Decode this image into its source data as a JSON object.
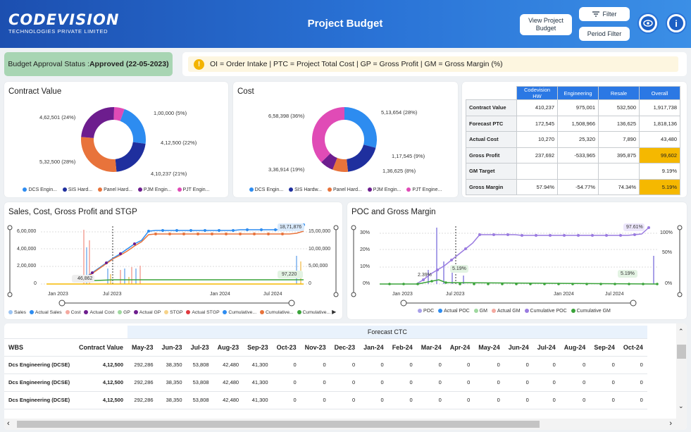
{
  "header": {
    "logo_main": "CODEVISION",
    "logo_sub": "TECHNOLOGIES PRIVATE LIMITED",
    "title": "Project Budget",
    "view_btn_l1": "View Project",
    "view_btn_l2": "Budget",
    "filter_btn": "Filter",
    "period_btn": "Period Filter",
    "eye_icon": "eye-icon",
    "info_icon": "info-icon",
    "filter_icon": "filter-icon"
  },
  "status": {
    "label": "Budget Approval Status : ",
    "value": "Approved (22-05-2023)"
  },
  "abbrev": {
    "text": "OI = Order Intake  |  PTC = Project Total Cost  |  GP = Gross Profit  |  GM = Gross Margin (%)"
  },
  "contract": {
    "title": "Contract Value",
    "labels": [
      "4,62,501 (24%)",
      "1,00,000 (5%)",
      "4,12,500 (22%)",
      "4,10,237 (21%)",
      "5,32,500 (28%)"
    ],
    "legend": [
      "DCS Engin...",
      "SIS Hard...",
      "Panel Hard...",
      "PJM Engin...",
      "PJT Engin..."
    ]
  },
  "cost": {
    "title": "Cost",
    "labels": [
      "6,58,398 (36%)",
      "5,13,654 (28%)",
      "1,17,545 (9%)",
      "1,36,625 (8%)",
      "3,36,914 (19%)"
    ],
    "legend": [
      "DCS Engin...",
      "SIS Hardw...",
      "Panel Hard...",
      "PJM Engin...",
      "PJT Engine..."
    ]
  },
  "colors": {
    "dcs": "#2d8cf0",
    "sis": "#1f2f9e",
    "panel": "#e8733b",
    "pjm": "#6d1d8e",
    "pjt": "#e04bb6",
    "orange": "#f5b800"
  },
  "summary": {
    "cols": [
      "Codevision HW",
      "Engineering",
      "Resale",
      "Overall"
    ],
    "rows": [
      {
        "name": "Contract Value",
        "v": [
          "410,237",
          "975,001",
          "532,500",
          "1,917,738"
        ]
      },
      {
        "name": "Forecast PTC",
        "v": [
          "172,545",
          "1,508,966",
          "136,625",
          "1,818,136"
        ]
      },
      {
        "name": "Actual Cost",
        "v": [
          "10,270",
          "25,320",
          "7,890",
          "43,480"
        ]
      },
      {
        "name": "Gross Profit",
        "v": [
          "237,692",
          "-533,965",
          "395,875",
          "99,602"
        ]
      },
      {
        "name": "GM Target",
        "v": [
          "",
          "",
          "",
          "9.19%"
        ]
      },
      {
        "name": "Gross Margin",
        "v": [
          "57.94%",
          "-54.77%",
          "74.34%",
          "5.19%"
        ]
      }
    ]
  },
  "sales": {
    "title": "Sales, Cost, Gross Profit and STGP",
    "yleft": [
      "6,00,000",
      "4,00,000",
      "2,00,000",
      "0"
    ],
    "yright": [
      "15,00,000",
      "10,00,000",
      "5,00,000",
      "0"
    ],
    "xticks": [
      "Jan 2023",
      "Jul 2023",
      "Jan 2024",
      "Jul 2024"
    ],
    "callouts": [
      "18,71,876",
      "97,220",
      "46,862"
    ],
    "legend": [
      "Sales",
      "Actual Sales",
      "Cost",
      "Actual Cost",
      "GP",
      "Actual GP",
      "STGP",
      "Actual STGP",
      "Cumulative...",
      "Cumulative...",
      "Cumulative..."
    ]
  },
  "poc": {
    "title": "POC and Gross Margin",
    "yleft": [
      "30%",
      "20%",
      "10%",
      "0%"
    ],
    "yright": [
      "100%",
      "50%",
      "0%"
    ],
    "xticks": [
      "Jan 2023",
      "Jul 2023",
      "Jan 2024",
      "Jul 2024"
    ],
    "callouts": [
      "97.61%",
      "5.19%",
      "2.39%",
      "5.19%"
    ],
    "legend": [
      "POC",
      "Actual POC",
      "GM",
      "Actual GM",
      "Cumulative POC",
      "Cumulative GM"
    ]
  },
  "chart_data": [
    {
      "type": "pie",
      "title": "Contract Value",
      "categories": [
        "DCS Engin...",
        "SIS Hard...",
        "Panel Hard...",
        "PJM Engin...",
        "PJT Engin..."
      ],
      "values": [
        412500,
        410237,
        532500,
        462501,
        100000
      ]
    },
    {
      "type": "pie",
      "title": "Cost",
      "categories": [
        "DCS Engin...",
        "SIS Hardw...",
        "Panel Hard...",
        "PJM Engin...",
        "PJT Engine..."
      ],
      "values": [
        513654,
        336914,
        136625,
        117545,
        658398
      ]
    }
  ],
  "table": {
    "forecast_header": "Forecast CTC",
    "headers": [
      "WBS",
      "Contract Value",
      "May-23",
      "Jun-23",
      "Jul-23",
      "Aug-23",
      "Sep-23",
      "Oct-23",
      "Nov-23",
      "Dec-23",
      "Jan-24",
      "Feb-24",
      "Mar-24",
      "Apr-24",
      "May-24",
      "Jun-24",
      "Jul-24",
      "Aug-24",
      "Sep-24",
      "Oct-24"
    ],
    "rows": [
      [
        "Dcs Engineering (DCSE)",
        "4,12,500",
        "292,286",
        "38,350",
        "53,808",
        "42,480",
        "41,300",
        "0",
        "0",
        "0",
        "0",
        "0",
        "0",
        "0",
        "0",
        "0",
        "0",
        "0",
        "0",
        "0"
      ],
      [
        "Dcs Engineering (DCSE)",
        "4,12,500",
        "292,286",
        "38,350",
        "53,808",
        "42,480",
        "41,300",
        "0",
        "0",
        "0",
        "0",
        "0",
        "0",
        "0",
        "0",
        "0",
        "0",
        "0",
        "0",
        "0"
      ],
      [
        "Dcs Engineering (DCSE)",
        "4,12,500",
        "292,286",
        "38,350",
        "53,808",
        "42,480",
        "41,300",
        "0",
        "0",
        "0",
        "0",
        "0",
        "0",
        "0",
        "0",
        "0",
        "0",
        "0",
        "0",
        "0"
      ]
    ]
  }
}
